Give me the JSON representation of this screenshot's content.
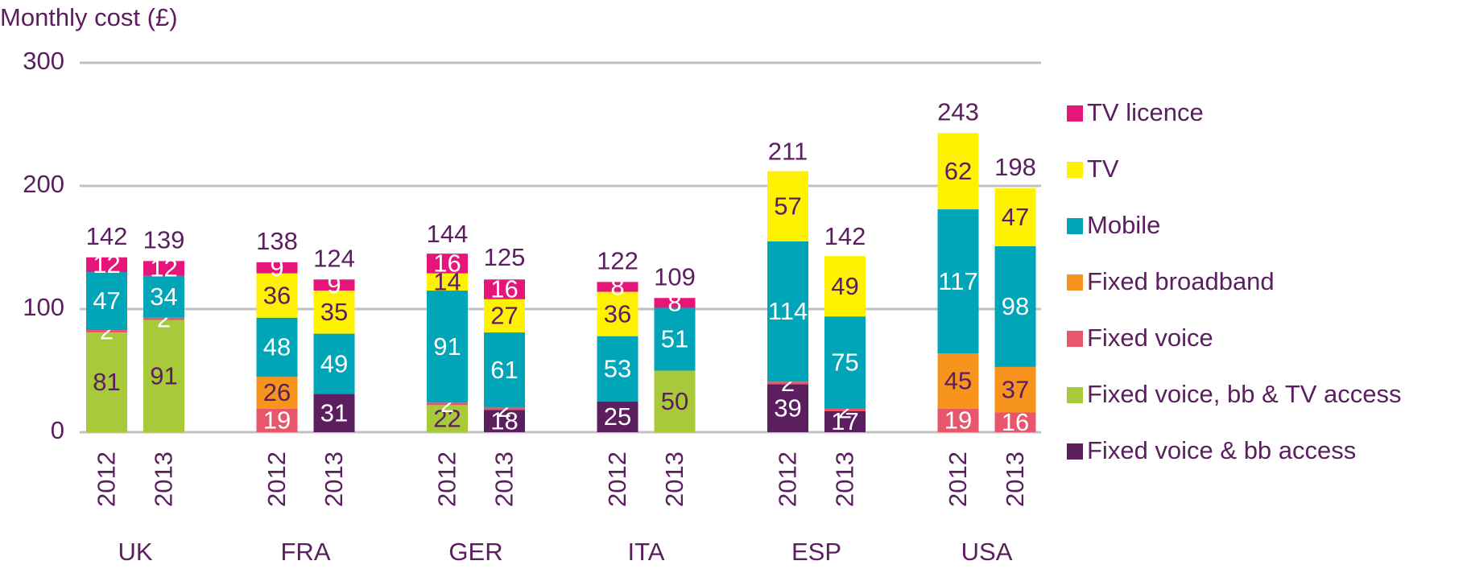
{
  "chart_data": {
    "type": "stacked_bar",
    "y_axis_label": "Monthly cost (£)",
    "categories": [
      "2012",
      "2013",
      "2012",
      "2013",
      "2012",
      "2013",
      "2012",
      "2013",
      "2012",
      "2013",
      "2012",
      "2013"
    ],
    "groups": [
      "UK",
      "FRA",
      "GER",
      "ITA",
      "ESP",
      "USA"
    ],
    "ylim": [
      0,
      300
    ],
    "yticks": [
      0,
      100,
      200,
      300
    ],
    "grid": true,
    "legend": "right",
    "totals": [
      142,
      139,
      138,
      124,
      144,
      125,
      122,
      109,
      211,
      142,
      243,
      198
    ],
    "series": [
      {
        "name": "Fixed voice & bb access",
        "color": "#5b1e5f",
        "label_color": "#ffffff",
        "values": [
          null,
          null,
          null,
          31,
          null,
          18,
          25,
          null,
          39,
          17,
          null,
          null
        ]
      },
      {
        "name": "Fixed voice, bb & TV access",
        "color": "#a8c93a",
        "label_color": "#5b1e5f",
        "values": [
          81,
          91,
          null,
          null,
          22,
          null,
          null,
          50,
          null,
          null,
          null,
          null
        ]
      },
      {
        "name": "Fixed voice",
        "color": "#e8566b",
        "label_color": "#ffffff",
        "values": [
          2,
          2,
          19,
          null,
          2,
          2,
          null,
          null,
          2,
          2,
          19,
          16
        ]
      },
      {
        "name": "Fixed broadband",
        "color": "#f7941d",
        "label_color": "#5b1e5f",
        "values": [
          null,
          null,
          26,
          null,
          null,
          null,
          null,
          null,
          null,
          null,
          45,
          37
        ]
      },
      {
        "name": "Mobile",
        "color": "#00a5b8",
        "label_color": "#ffffff",
        "values": [
          47,
          34,
          48,
          49,
          91,
          61,
          53,
          51,
          114,
          75,
          117,
          98
        ]
      },
      {
        "name": "TV",
        "color": "#fff200",
        "label_color": "#5b1e5f",
        "values": [
          null,
          null,
          36,
          35,
          14,
          27,
          36,
          null,
          57,
          49,
          62,
          47
        ]
      },
      {
        "name": "TV licence",
        "color": "#e6157a",
        "label_color": "#ffffff",
        "values": [
          12,
          12,
          9,
          9,
          16,
          16,
          8,
          8,
          null,
          null,
          null,
          null
        ]
      }
    ]
  }
}
